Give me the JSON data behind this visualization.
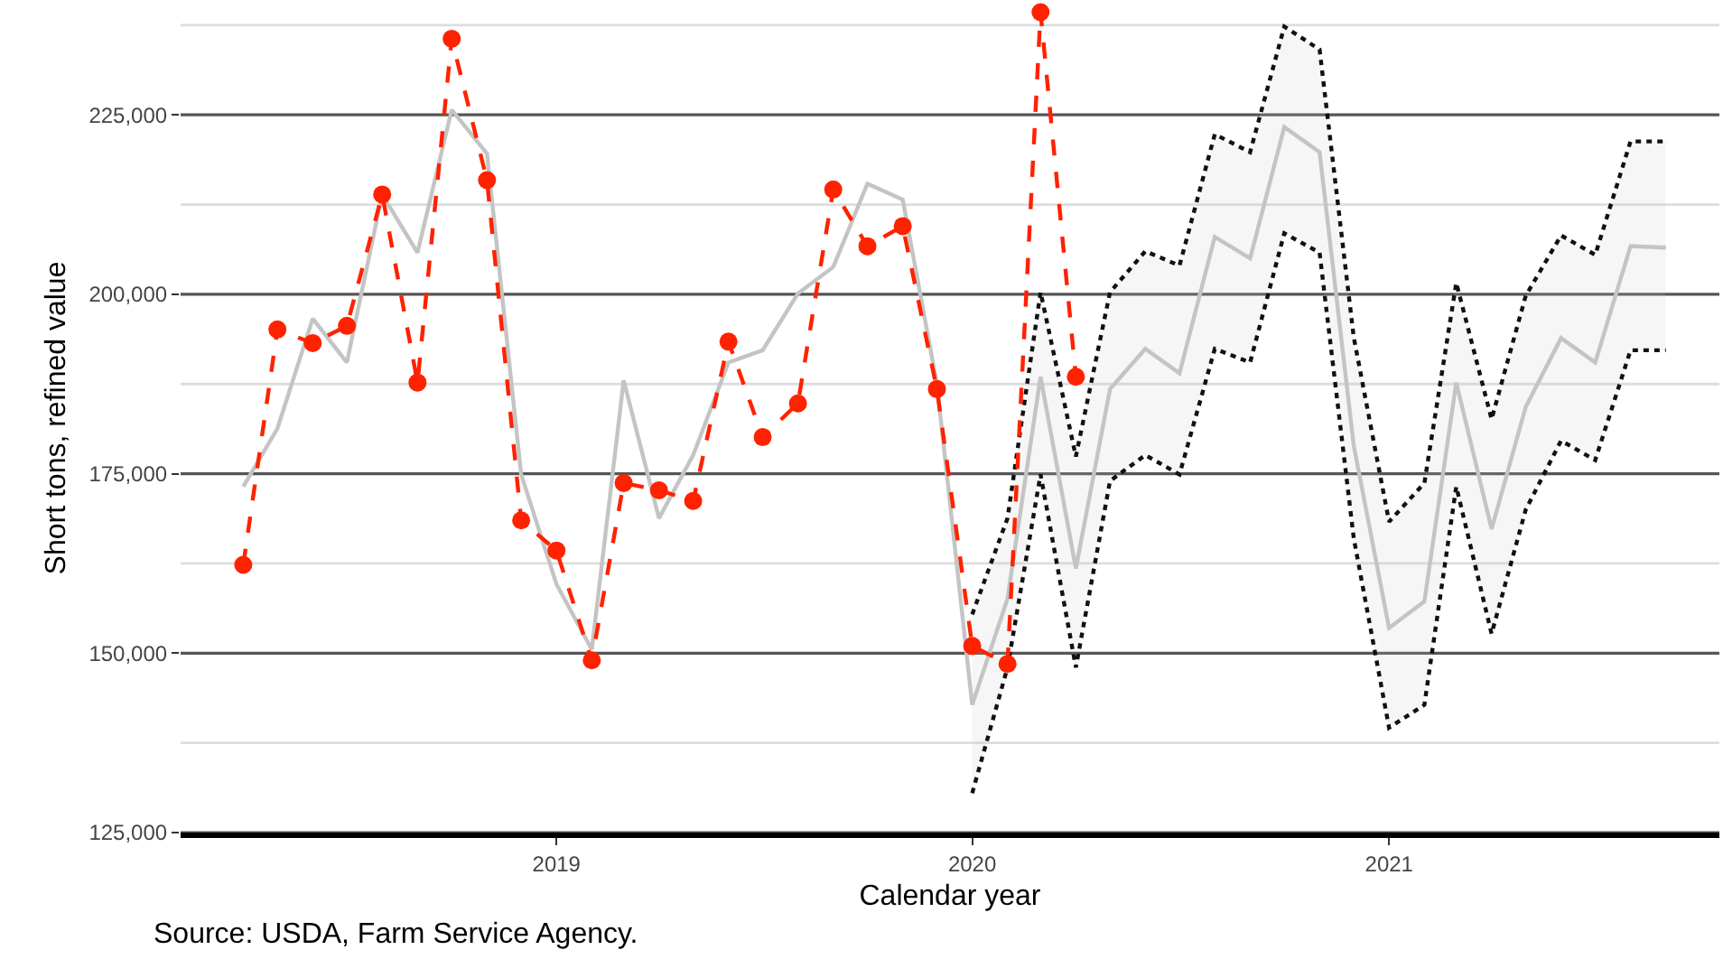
{
  "chart_data": {
    "type": "line",
    "xlabel": "Calendar year",
    "ylabel": "Short tons, refined value",
    "annotations": [
      "Source: USDA, Farm Service Agency."
    ],
    "x": [
      "2018-04",
      "2018-05",
      "2018-06",
      "2018-07",
      "2018-08",
      "2018-09",
      "2018-10",
      "2018-11",
      "2018-12",
      "2019-01",
      "2019-02",
      "2019-03",
      "2019-04",
      "2019-05",
      "2019-06",
      "2019-07",
      "2019-08",
      "2019-09",
      "2019-10",
      "2019-11",
      "2019-12",
      "2020-01",
      "2020-02",
      "2020-03",
      "2020-04",
      "2020-05",
      "2020-06",
      "2020-07",
      "2020-08",
      "2020-09",
      "2020-10",
      "2020-11",
      "2020-12",
      "2021-01",
      "2021-02",
      "2021-03",
      "2021-04",
      "2021-05",
      "2021-06",
      "2021-07",
      "2021-08",
      "2021-09"
    ],
    "series": [
      {
        "color": "#c4c4c4",
        "line_style": "solid",
        "marker": "none",
        "values": [
          173200,
          181300,
          196600,
          190500,
          213900,
          205800,
          225700,
          219600,
          174900,
          159600,
          150500,
          188000,
          168800,
          177600,
          190500,
          192200,
          200100,
          203800,
          215400,
          213200,
          187500,
          142800,
          157600,
          188500,
          161800,
          186800,
          192400,
          189000,
          208000,
          205000,
          223300,
          219800,
          178900,
          153500,
          157200,
          187700,
          167300,
          184300,
          193900,
          190500,
          206700,
          206500
        ],
        "lower": [
          null,
          null,
          null,
          null,
          null,
          null,
          null,
          null,
          null,
          null,
          null,
          null,
          null,
          null,
          null,
          null,
          null,
          null,
          null,
          null,
          null,
          130500,
          148000,
          174900,
          148000,
          174000,
          177600,
          174900,
          192400,
          190500,
          208500,
          205800,
          166000,
          139600,
          142800,
          173200,
          152700,
          170000,
          179600,
          176900,
          192200,
          192200
        ],
        "upper": [
          null,
          null,
          null,
          null,
          null,
          null,
          null,
          null,
          null,
          null,
          null,
          null,
          null,
          null,
          null,
          null,
          null,
          null,
          null,
          null,
          null,
          155400,
          168800,
          200300,
          177400,
          200300,
          206000,
          204000,
          222300,
          219800,
          237300,
          234100,
          194000,
          168300,
          173700,
          201600,
          182600,
          199800,
          208200,
          205500,
          221300,
          221300
        ]
      },
      {
        "color": "#111111",
        "line_style": "dotted",
        "marker": "none",
        "values": [
          null,
          null,
          null,
          null,
          null,
          null,
          null,
          null,
          null,
          null,
          null,
          null,
          null,
          null,
          null,
          null,
          null,
          null,
          null,
          null,
          null,
          130500,
          148000,
          174900,
          148000,
          174000,
          177600,
          174900,
          192400,
          190500,
          208500,
          205800,
          166000,
          139600,
          142800,
          173200,
          152700,
          170000,
          179600,
          176900,
          192200,
          192200
        ]
      },
      {
        "color": "#111111",
        "line_style": "dotted",
        "marker": "none",
        "values": [
          null,
          null,
          null,
          null,
          null,
          null,
          null,
          null,
          null,
          null,
          null,
          null,
          null,
          null,
          null,
          null,
          null,
          null,
          null,
          null,
          null,
          155400,
          168800,
          200300,
          177400,
          200300,
          206000,
          204000,
          222300,
          219800,
          237300,
          234100,
          194000,
          168300,
          173700,
          201600,
          182600,
          199800,
          208200,
          205500,
          221300,
          221300
        ]
      },
      {
        "color": "#ff2200",
        "line_style": "dashed",
        "marker": "circle",
        "values": [
          162300,
          195100,
          193200,
          195600,
          213900,
          187700,
          235600,
          215900,
          168500,
          164300,
          149000,
          173700,
          172700,
          171200,
          193400,
          180100,
          184800,
          214600,
          206700,
          209500,
          186800,
          151000,
          148500,
          239300,
          188500,
          null,
          null,
          null,
          null,
          null,
          null,
          null,
          null,
          null,
          null,
          null,
          null,
          null,
          null,
          null,
          null,
          null
        ]
      }
    ],
    "xlim": [
      "2018-02-05",
      "2021-10-18"
    ],
    "xticks": [
      "2019",
      "2020",
      "2021"
    ],
    "ylim": [
      125000,
      240500
    ],
    "yticks": [
      {
        "value": 125000,
        "label": "125,000"
      },
      {
        "value": 137500,
        "label": null
      },
      {
        "value": 150000,
        "label": "150,000"
      },
      {
        "value": 162500,
        "label": null
      },
      {
        "value": 175000,
        "label": "175,000"
      },
      {
        "value": 187500,
        "label": null
      },
      {
        "value": 200000,
        "label": "200,000"
      },
      {
        "value": 212500,
        "label": null
      },
      {
        "value": 225000,
        "label": "225,000"
      },
      {
        "value": 237500,
        "label": null
      }
    ],
    "grid": "y"
  }
}
